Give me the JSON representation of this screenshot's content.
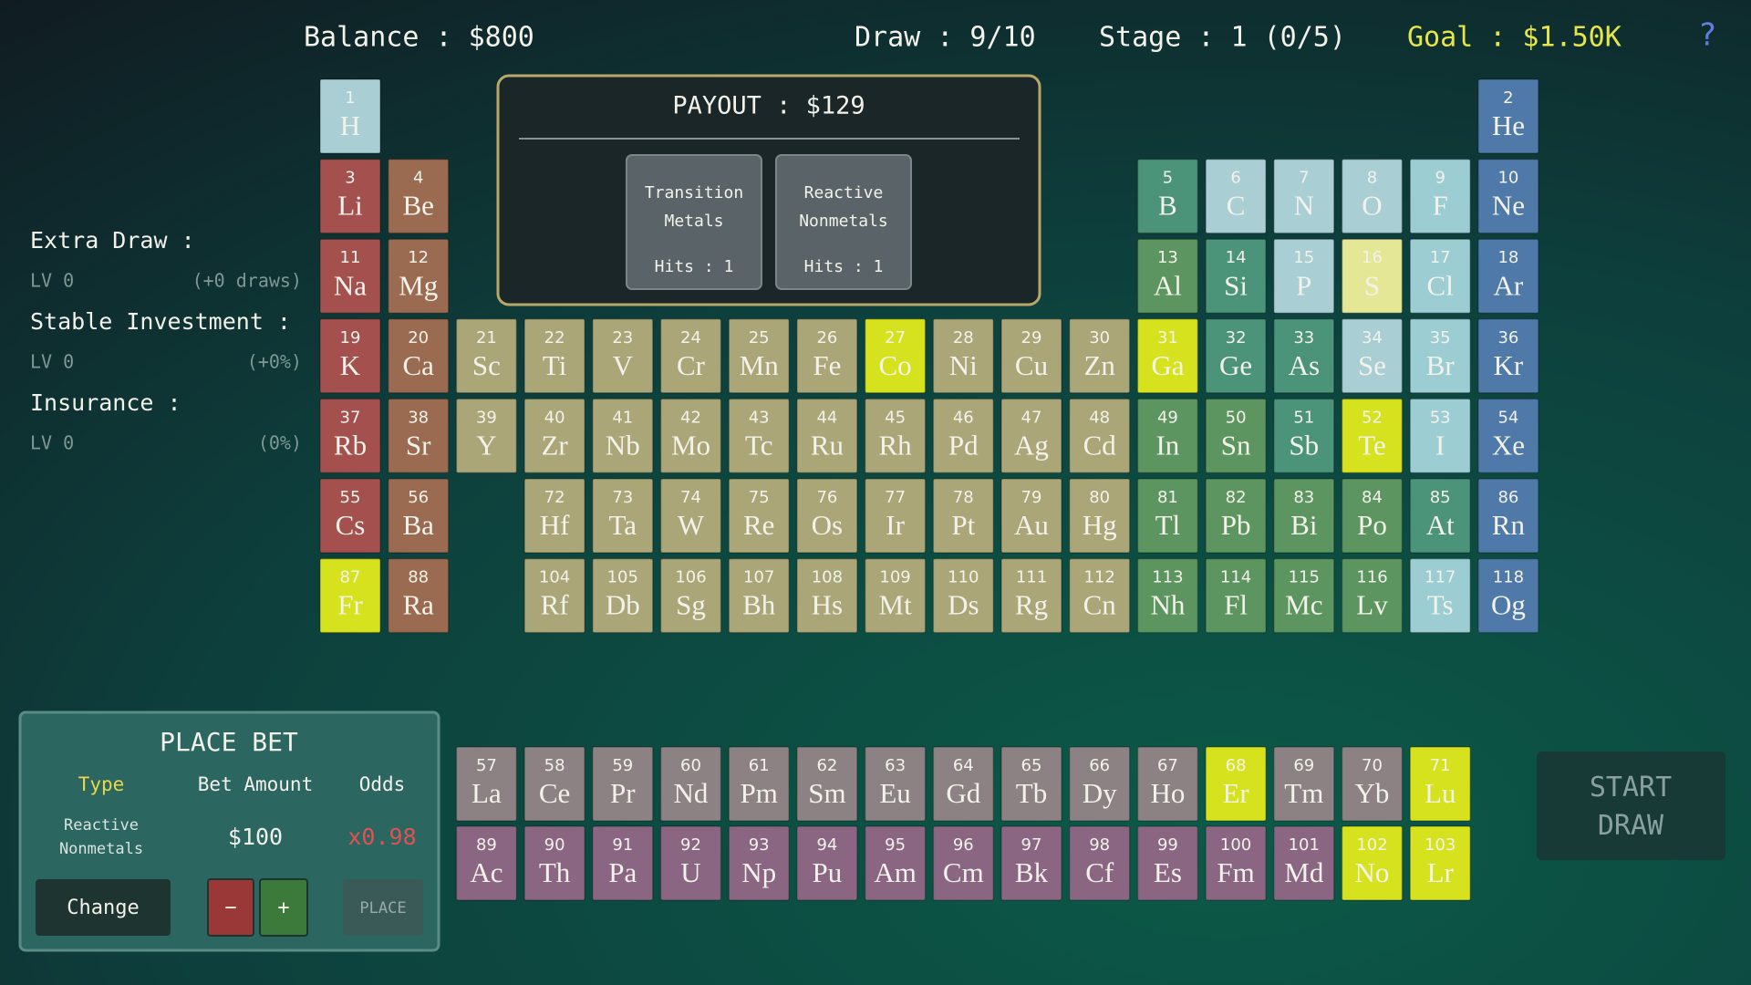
{
  "header": {
    "balance": "Balance : $800",
    "draw": "Draw : 9/10",
    "stage": "Stage : 1 (0/5)",
    "goal": "Goal : $1.50K",
    "help": "?"
  },
  "payout": {
    "title": "PAYOUT : $129",
    "cards": [
      {
        "label": [
          "Transition",
          "Metals"
        ],
        "hits": "Hits : 1"
      },
      {
        "label": [
          "Reactive",
          "Nonmetals"
        ],
        "hits": "Hits : 1"
      }
    ]
  },
  "upgrades": [
    {
      "name": "Extra Draw :",
      "level": "LV 0",
      "effect": "(+0 draws)"
    },
    {
      "name": "Stable Investment :",
      "level": "LV 0",
      "effect": "(+0%)"
    },
    {
      "name": "Insurance :",
      "level": "LV 0",
      "effect": "(0%)"
    }
  ],
  "bet_panel": {
    "title": "PLACE BET",
    "headers": [
      "Type",
      "Bet Amount",
      "Odds"
    ],
    "type": [
      "Reactive",
      "Nonmetals"
    ],
    "amount": "$100",
    "odds": "x0.98",
    "buttons": {
      "change": "Change",
      "minus": "−",
      "plus": "+",
      "place": "PLACE"
    }
  },
  "start_draw": [
    "START",
    "DRAW"
  ],
  "elements": [
    {
      "number": 1,
      "symbol": "H",
      "color": "#a9ced4"
    },
    {
      "number": 2,
      "symbol": "He",
      "color": "#4e79a8"
    },
    {
      "number": 3,
      "symbol": "Li",
      "color": "#a4504e"
    },
    {
      "number": 4,
      "symbol": "Be",
      "color": "#9a6b50"
    },
    {
      "number": 5,
      "symbol": "B",
      "color": "#4b9379"
    },
    {
      "number": 6,
      "symbol": "C",
      "color": "#a9ced4"
    },
    {
      "number": 7,
      "symbol": "N",
      "color": "#a9ced4"
    },
    {
      "number": 8,
      "symbol": "O",
      "color": "#a9ced4"
    },
    {
      "number": 9,
      "symbol": "F",
      "color": "#9ccdd3"
    },
    {
      "number": 10,
      "symbol": "Ne",
      "color": "#4e79a8"
    },
    {
      "number": 11,
      "symbol": "Na",
      "color": "#a4504e"
    },
    {
      "number": 12,
      "symbol": "Mg",
      "color": "#9a6b50"
    },
    {
      "number": 13,
      "symbol": "Al",
      "color": "#5d9561"
    },
    {
      "number": 14,
      "symbol": "Si",
      "color": "#4b9379"
    },
    {
      "number": 15,
      "symbol": "P",
      "color": "#a9ced4"
    },
    {
      "number": 16,
      "symbol": "S",
      "color": "#e4e796"
    },
    {
      "number": 17,
      "symbol": "Cl",
      "color": "#9ccdd3"
    },
    {
      "number": 18,
      "symbol": "Ar",
      "color": "#4e79a8"
    },
    {
      "number": 19,
      "symbol": "K",
      "color": "#a4504e"
    },
    {
      "number": 20,
      "symbol": "Ca",
      "color": "#9a6b50"
    },
    {
      "number": 21,
      "symbol": "Sc",
      "color": "#aaa678"
    },
    {
      "number": 22,
      "symbol": "Ti",
      "color": "#aaa678"
    },
    {
      "number": 23,
      "symbol": "V",
      "color": "#aaa678"
    },
    {
      "number": 24,
      "symbol": "Cr",
      "color": "#aaa678"
    },
    {
      "number": 25,
      "symbol": "Mn",
      "color": "#aaa678"
    },
    {
      "number": 26,
      "symbol": "Fe",
      "color": "#aaa678"
    },
    {
      "number": 27,
      "symbol": "Co",
      "color": "#d7e21e"
    },
    {
      "number": 28,
      "symbol": "Ni",
      "color": "#aaa678"
    },
    {
      "number": 29,
      "symbol": "Cu",
      "color": "#aaa678"
    },
    {
      "number": 30,
      "symbol": "Zn",
      "color": "#aaa678"
    },
    {
      "number": 31,
      "symbol": "Ga",
      "color": "#d7e21e"
    },
    {
      "number": 32,
      "symbol": "Ge",
      "color": "#4b9379"
    },
    {
      "number": 33,
      "symbol": "As",
      "color": "#4b9379"
    },
    {
      "number": 34,
      "symbol": "Se",
      "color": "#a9ced4"
    },
    {
      "number": 35,
      "symbol": "Br",
      "color": "#9ccdd3"
    },
    {
      "number": 36,
      "symbol": "Kr",
      "color": "#4e79a8"
    },
    {
      "number": 37,
      "symbol": "Rb",
      "color": "#a4504e"
    },
    {
      "number": 38,
      "symbol": "Sr",
      "color": "#9a6b50"
    },
    {
      "number": 39,
      "symbol": "Y",
      "color": "#aaa678"
    },
    {
      "number": 40,
      "symbol": "Zr",
      "color": "#aaa678"
    },
    {
      "number": 41,
      "symbol": "Nb",
      "color": "#aaa678"
    },
    {
      "number": 42,
      "symbol": "Mo",
      "color": "#aaa678"
    },
    {
      "number": 43,
      "symbol": "Tc",
      "color": "#aaa678"
    },
    {
      "number": 44,
      "symbol": "Ru",
      "color": "#aaa678"
    },
    {
      "number": 45,
      "symbol": "Rh",
      "color": "#aaa678"
    },
    {
      "number": 46,
      "symbol": "Pd",
      "color": "#aaa678"
    },
    {
      "number": 47,
      "symbol": "Ag",
      "color": "#aaa678"
    },
    {
      "number": 48,
      "symbol": "Cd",
      "color": "#aaa678"
    },
    {
      "number": 49,
      "symbol": "In",
      "color": "#5d9561"
    },
    {
      "number": 50,
      "symbol": "Sn",
      "color": "#5d9561"
    },
    {
      "number": 51,
      "symbol": "Sb",
      "color": "#4b9379"
    },
    {
      "number": 52,
      "symbol": "Te",
      "color": "#d7e21e"
    },
    {
      "number": 53,
      "symbol": "I",
      "color": "#9ccdd3"
    },
    {
      "number": 54,
      "symbol": "Xe",
      "color": "#4e79a8"
    },
    {
      "number": 55,
      "symbol": "Cs",
      "color": "#a4504e"
    },
    {
      "number": 56,
      "symbol": "Ba",
      "color": "#9a6b50"
    },
    {
      "number": 57,
      "symbol": "La",
      "color": "#8d8283"
    },
    {
      "number": 58,
      "symbol": "Ce",
      "color": "#8d8283"
    },
    {
      "number": 59,
      "symbol": "Pr",
      "color": "#8d8283"
    },
    {
      "number": 60,
      "symbol": "Nd",
      "color": "#8d8283"
    },
    {
      "number": 61,
      "symbol": "Pm",
      "color": "#8d8283"
    },
    {
      "number": 62,
      "symbol": "Sm",
      "color": "#8d8283"
    },
    {
      "number": 63,
      "symbol": "Eu",
      "color": "#8d8283"
    },
    {
      "number": 64,
      "symbol": "Gd",
      "color": "#8d8283"
    },
    {
      "number": 65,
      "symbol": "Tb",
      "color": "#8d8283"
    },
    {
      "number": 66,
      "symbol": "Dy",
      "color": "#8d8283"
    },
    {
      "number": 67,
      "symbol": "Ho",
      "color": "#8d8283"
    },
    {
      "number": 68,
      "symbol": "Er",
      "color": "#d7e21e"
    },
    {
      "number": 69,
      "symbol": "Tm",
      "color": "#8d8283"
    },
    {
      "number": 70,
      "symbol": "Yb",
      "color": "#8d8283"
    },
    {
      "number": 71,
      "symbol": "Lu",
      "color": "#d7e21e"
    },
    {
      "number": 72,
      "symbol": "Hf",
      "color": "#aaa678"
    },
    {
      "number": 73,
      "symbol": "Ta",
      "color": "#aaa678"
    },
    {
      "number": 74,
      "symbol": "W",
      "color": "#aaa678"
    },
    {
      "number": 75,
      "symbol": "Re",
      "color": "#aaa678"
    },
    {
      "number": 76,
      "symbol": "Os",
      "color": "#aaa678"
    },
    {
      "number": 77,
      "symbol": "Ir",
      "color": "#aaa678"
    },
    {
      "number": 78,
      "symbol": "Pt",
      "color": "#aaa678"
    },
    {
      "number": 79,
      "symbol": "Au",
      "color": "#aaa678"
    },
    {
      "number": 80,
      "symbol": "Hg",
      "color": "#aaa678"
    },
    {
      "number": 81,
      "symbol": "Tl",
      "color": "#5d9561"
    },
    {
      "number": 82,
      "symbol": "Pb",
      "color": "#5d9561"
    },
    {
      "number": 83,
      "symbol": "Bi",
      "color": "#5d9561"
    },
    {
      "number": 84,
      "symbol": "Po",
      "color": "#5d9561"
    },
    {
      "number": 85,
      "symbol": "At",
      "color": "#4b9379"
    },
    {
      "number": 86,
      "symbol": "Rn",
      "color": "#4e79a8"
    },
    {
      "number": 87,
      "symbol": "Fr",
      "color": "#d7e21e"
    },
    {
      "number": 88,
      "symbol": "Ra",
      "color": "#9a6b50"
    },
    {
      "number": 89,
      "symbol": "Ac",
      "color": "#8a6683"
    },
    {
      "number": 90,
      "symbol": "Th",
      "color": "#8a6683"
    },
    {
      "number": 91,
      "symbol": "Pa",
      "color": "#8a6683"
    },
    {
      "number": 92,
      "symbol": "U",
      "color": "#8a6683"
    },
    {
      "number": 93,
      "symbol": "Np",
      "color": "#8a6683"
    },
    {
      "number": 94,
      "symbol": "Pu",
      "color": "#8a6683"
    },
    {
      "number": 95,
      "symbol": "Am",
      "color": "#8a6683"
    },
    {
      "number": 96,
      "symbol": "Cm",
      "color": "#8a6683"
    },
    {
      "number": 97,
      "symbol": "Bk",
      "color": "#8a6683"
    },
    {
      "number": 98,
      "symbol": "Cf",
      "color": "#8a6683"
    },
    {
      "number": 99,
      "symbol": "Es",
      "color": "#8a6683"
    },
    {
      "number": 100,
      "symbol": "Fm",
      "color": "#8a6683"
    },
    {
      "number": 101,
      "symbol": "Md",
      "color": "#8a6683"
    },
    {
      "number": 102,
      "symbol": "No",
      "color": "#d7e21e"
    },
    {
      "number": 103,
      "symbol": "Lr",
      "color": "#d7e21e"
    },
    {
      "number": 104,
      "symbol": "Rf",
      "color": "#aaa678"
    },
    {
      "number": 105,
      "symbol": "Db",
      "color": "#aaa678"
    },
    {
      "number": 106,
      "symbol": "Sg",
      "color": "#aaa678"
    },
    {
      "number": 107,
      "symbol": "Bh",
      "color": "#aaa678"
    },
    {
      "number": 108,
      "symbol": "Hs",
      "color": "#aaa678"
    },
    {
      "number": 109,
      "symbol": "Mt",
      "color": "#aaa678"
    },
    {
      "number": 110,
      "symbol": "Ds",
      "color": "#aaa678"
    },
    {
      "number": 111,
      "symbol": "Rg",
      "color": "#aaa678"
    },
    {
      "number": 112,
      "symbol": "Cn",
      "color": "#aaa678"
    },
    {
      "number": 113,
      "symbol": "Nh",
      "color": "#5d9561"
    },
    {
      "number": 114,
      "symbol": "Fl",
      "color": "#5d9561"
    },
    {
      "number": 115,
      "symbol": "Mc",
      "color": "#5d9561"
    },
    {
      "number": 116,
      "symbol": "Lv",
      "color": "#5d9561"
    },
    {
      "number": 117,
      "symbol": "Ts",
      "color": "#9ccdd3"
    },
    {
      "number": 118,
      "symbol": "Og",
      "color": "#4e79a8"
    }
  ]
}
